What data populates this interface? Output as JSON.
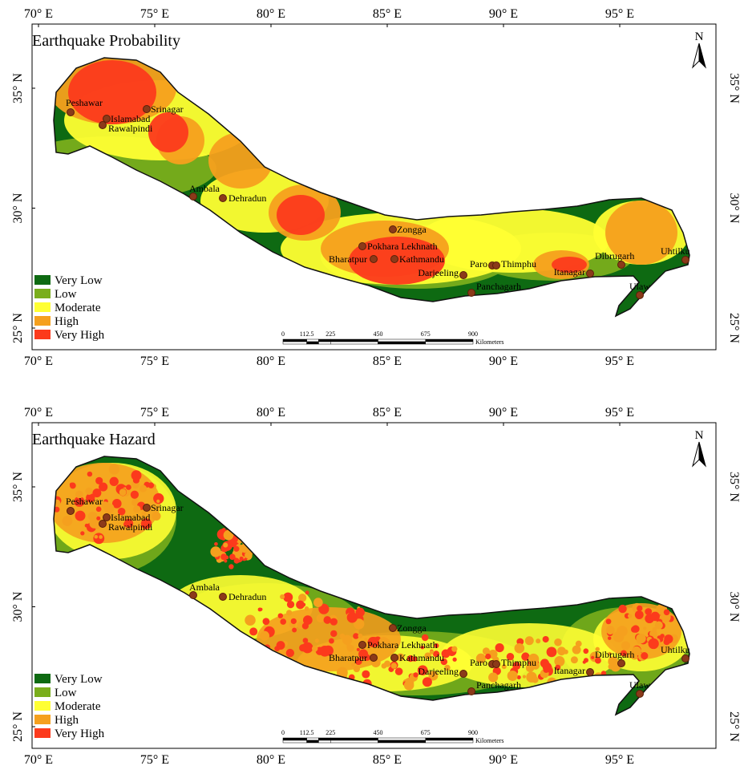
{
  "panels": [
    {
      "title": "Earthquake Probability",
      "lon_ticks": [
        {
          "value": 70,
          "label": "70° E"
        },
        {
          "value": 75,
          "label": "75° E"
        },
        {
          "value": 80,
          "label": "80° E"
        },
        {
          "value": 85,
          "label": "85° E"
        },
        {
          "value": 90,
          "label": "90° E"
        },
        {
          "value": 95,
          "label": "95° E"
        }
      ],
      "lat_ticks": [
        {
          "value": 25,
          "label": "25° N"
        },
        {
          "value": 30,
          "label": "30° N"
        },
        {
          "value": 35,
          "label": "35° N"
        }
      ],
      "legend": [
        {
          "label": "Very Low",
          "color": "#0e6a12"
        },
        {
          "label": "Low",
          "color": "#7aae1c"
        },
        {
          "label": "Moderate",
          "color": "#ffff33"
        },
        {
          "label": "High",
          "color": "#f5a01e"
        },
        {
          "label": "Very High",
          "color": "#fc3a1c"
        }
      ],
      "cities": [
        "Peshawar",
        "Srinagar",
        "Islamabad",
        "Rawalpindi",
        "Ambala",
        "Dehradun",
        "Zongga",
        "Pokhara Lekhnath",
        "Bharatpur",
        "Kathmandu",
        "Darjeeling",
        "Paro",
        "Thimphu",
        "Panchagarh",
        "Itanagar",
        "Dibrugarh",
        "Uhtilku",
        "Ulaw"
      ],
      "scale_bar": {
        "ticks": [
          0,
          112.5,
          225,
          450,
          675,
          900
        ],
        "unit": "Kilometers"
      },
      "north_label": "N"
    },
    {
      "title": "Earthquake Hazard",
      "lon_ticks": [
        {
          "value": 70,
          "label": "70° E"
        },
        {
          "value": 75,
          "label": "75° E"
        },
        {
          "value": 80,
          "label": "80° E"
        },
        {
          "value": 85,
          "label": "85° E"
        },
        {
          "value": 90,
          "label": "90° E"
        },
        {
          "value": 95,
          "label": "95° E"
        }
      ],
      "lat_ticks": [
        {
          "value": 25,
          "label": "25° N"
        },
        {
          "value": 30,
          "label": "30° N"
        },
        {
          "value": 35,
          "label": "35° N"
        }
      ],
      "legend": [
        {
          "label": "Very Low",
          "color": "#0e6a12"
        },
        {
          "label": "Low",
          "color": "#7aae1c"
        },
        {
          "label": "Moderate",
          "color": "#ffff33"
        },
        {
          "label": "High",
          "color": "#f5a01e"
        },
        {
          "label": "Very High",
          "color": "#fc3a1c"
        }
      ],
      "cities": [
        "Peshawar",
        "Srinagar",
        "Islamabad",
        "Rawalpindi",
        "Ambala",
        "Dehradun",
        "Zongga",
        "Pokhara Lekhnath",
        "Bharatpur",
        "Kathmandu",
        "Darjeeling",
        "Paro",
        "Thimphu",
        "Panchagarh",
        "Itanagar",
        "Dibrugarh",
        "Uhtilku",
        "Ulaw"
      ],
      "scale_bar": {
        "ticks": [
          0,
          112.5,
          225,
          450,
          675,
          900
        ],
        "unit": "Kilometers"
      },
      "north_label": "N"
    }
  ]
}
